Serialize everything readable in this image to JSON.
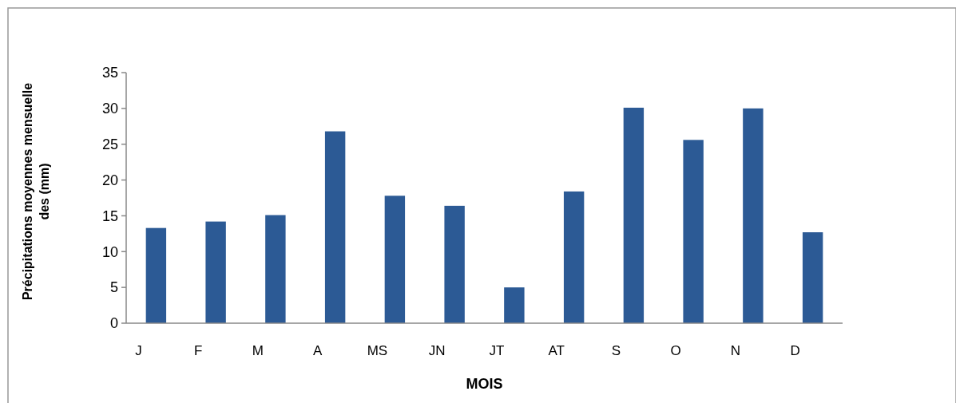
{
  "chart_data": {
    "type": "bar",
    "categories": [
      "J",
      "F",
      "M",
      "A",
      "MS",
      "JN",
      "JT",
      "AT",
      "S",
      "O",
      "N",
      "D"
    ],
    "values": [
      13.3,
      14.2,
      15.1,
      26.8,
      17.8,
      16.4,
      5.0,
      18.4,
      30.1,
      25.6,
      30.0,
      12.7
    ],
    "color": "#2c5a95",
    "xlabel": "MOIS",
    "ylabel": "Précipitations moyennes mensuelle des (mm)",
    "ylim": [
      0,
      35
    ],
    "yticks": [
      0,
      5,
      10,
      15,
      20,
      25,
      30,
      35
    ],
    "grid": false
  }
}
